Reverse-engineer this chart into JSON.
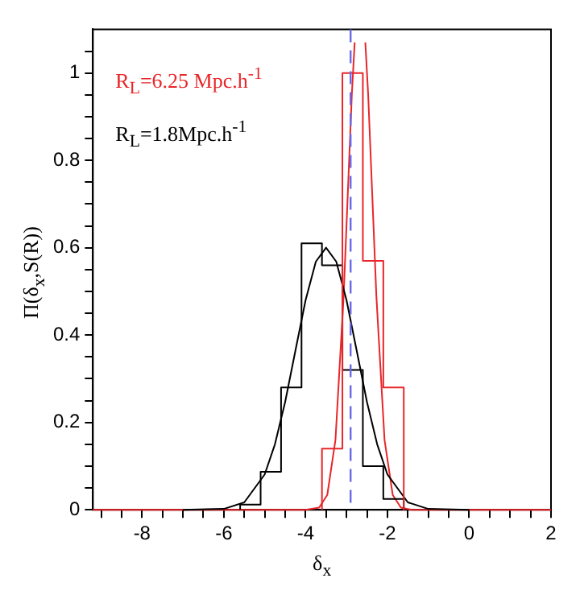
{
  "chart_data": {
    "type": "line",
    "xlabel": "δ$_{x}$",
    "ylabel": "Π(δ$_{x}$,S(R))",
    "xlim": [
      -9.2,
      2
    ],
    "ylim": [
      0,
      1.1
    ],
    "xticks": [
      {
        "value": -9,
        "label": null
      },
      {
        "value": -8.5,
        "label": null
      },
      -8,
      {
        "value": -7.5,
        "label": null
      },
      {
        "value": -7,
        "label": null
      },
      {
        "value": -6.5,
        "label": null
      },
      -6,
      {
        "value": -5.5,
        "label": null
      },
      {
        "value": -5,
        "label": null
      },
      {
        "value": -4.5,
        "label": null
      },
      -4,
      {
        "value": -3.5,
        "label": null
      },
      {
        "value": -3,
        "label": null
      },
      {
        "value": -2.5,
        "label": null
      },
      -2,
      {
        "value": -1.5,
        "label": null
      },
      {
        "value": -1,
        "label": null
      },
      {
        "value": -0.5,
        "label": null
      },
      0,
      {
        "value": 0.5,
        "label": null
      },
      {
        "value": 1,
        "label": null
      },
      {
        "value": 1.5,
        "label": null
      },
      2
    ],
    "yticks": [
      0,
      {
        "value": 0.05,
        "label": null
      },
      {
        "value": 0.1,
        "label": null
      },
      {
        "value": 0.15,
        "label": null
      },
      0.2,
      {
        "value": 0.25,
        "label": null
      },
      {
        "value": 0.3,
        "label": null
      },
      {
        "value": 0.35,
        "label": null
      },
      0.4,
      {
        "value": 0.45,
        "label": null
      },
      {
        "value": 0.5,
        "label": null
      },
      {
        "value": 0.55,
        "label": null
      },
      0.6,
      {
        "value": 0.65,
        "label": null
      },
      {
        "value": 0.7,
        "label": null
      },
      {
        "value": 0.75,
        "label": null
      },
      0.8,
      {
        "value": 0.85,
        "label": null
      },
      {
        "value": 0.9,
        "label": null
      },
      {
        "value": 0.95,
        "label": null
      },
      1,
      {
        "value": 1.05,
        "label": null
      }
    ],
    "grid": false,
    "marker": "none",
    "legend": "top left",
    "series": [
      {
        "type": "histogram",
        "name": "R$_{L}$=6.25 Mpc.h$^{-1}$",
        "color": "#e8262a",
        "bins": [
          -3.6,
          -3.1,
          -2.6,
          -2.1,
          -1.6
        ],
        "values": [
          0.14,
          1.0,
          0.57,
          0.28
        ]
      },
      {
        "type": "histogram",
        "name": "R$_{L}$=1.8Mpc.h$^{-1}$",
        "color": "#000000",
        "bins": [
          -5.6,
          -5.1,
          -4.6,
          -4.1,
          -3.6,
          -3.1,
          -2.6,
          -2.1,
          -1.6
        ],
        "values": [
          0.012,
          0.087,
          0.28,
          0.61,
          0.56,
          0.32,
          0.1,
          0.025
        ]
      },
      {
        "type": "line",
        "color": "#000000",
        "x": [
          -7,
          -6,
          -5.5,
          -5,
          -4.75,
          -4.5,
          -4.25,
          -4,
          -3.75,
          -3.5,
          -3.25,
          -3,
          -2.75,
          -2.5,
          -2.25,
          -2,
          -1.5,
          -1,
          0
        ],
        "values": [
          0,
          0.002,
          0.017,
          0.081,
          0.15,
          0.247,
          0.364,
          0.48,
          0.568,
          0.6,
          0.568,
          0.48,
          0.364,
          0.247,
          0.15,
          0.081,
          0.017,
          0.002,
          0
        ]
      },
      {
        "type": "line",
        "color": "#e8262a",
        "x": [
          -9.2,
          -4,
          -3.67,
          -3.47,
          -3.27,
          -3.07,
          -2.97,
          -2.87,
          -2.8,
          -2.67,
          -2.54,
          -2.47,
          -2.37,
          -2.27,
          -2.07,
          -1.87,
          -1.67,
          -1.4,
          2
        ],
        "values": [
          0,
          0,
          0.005,
          0.034,
          0.16,
          0.49,
          0.72,
          0.95,
          1.07,
          null,
          1.07,
          0.95,
          0.72,
          0.49,
          0.16,
          0.034,
          0.005,
          0,
          0
        ]
      }
    ],
    "ref_lines": [
      {
        "axis": "x",
        "value": -2.9,
        "color": "#6a6ae8",
        "line_style": "dashed"
      }
    ]
  }
}
